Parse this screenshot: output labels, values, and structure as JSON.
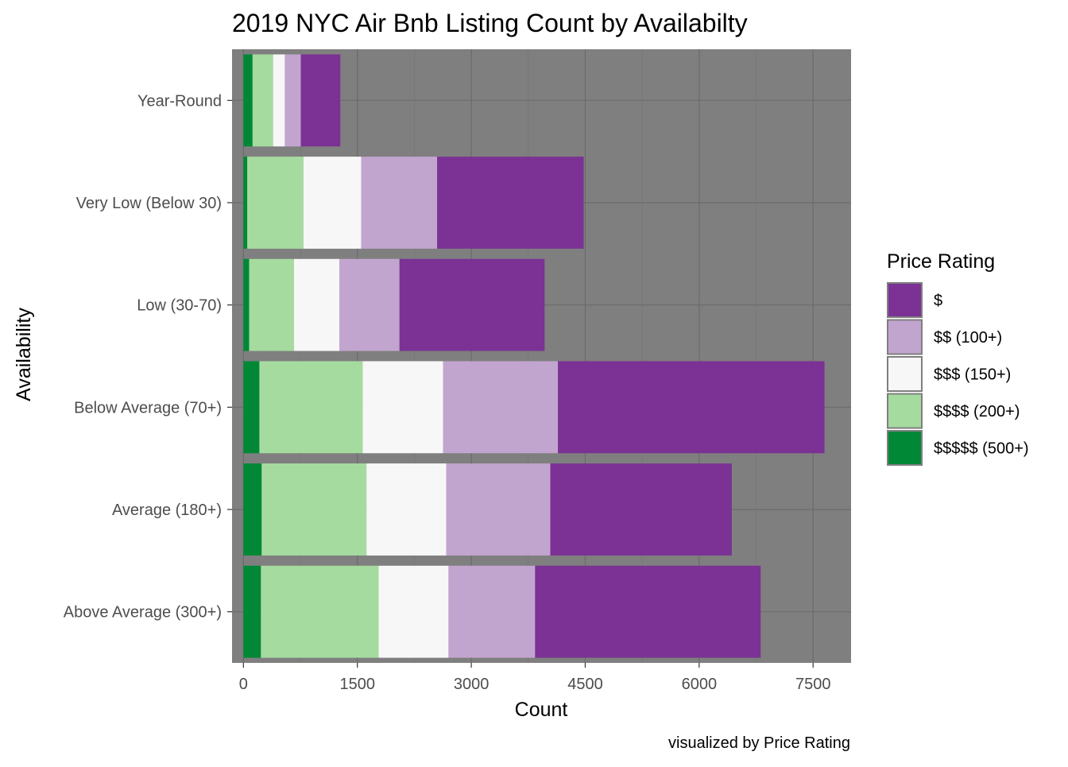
{
  "chart_data": {
    "type": "bar",
    "orientation": "horizontal",
    "stacked": true,
    "title": "2019 NYC Air Bnb Listing Count by Availabilty",
    "xlabel": "Count",
    "ylabel": "Availability",
    "caption": "visualized by Price Rating",
    "xlim": [
      -150,
      8000
    ],
    "xticks": [
      0,
      1500,
      3000,
      4500,
      6000,
      7500
    ],
    "grid": true,
    "panel_background": "#7f7f7f",
    "categories": [
      "Year-Round",
      "Very Low (Below 30)",
      "Low (30-70)",
      "Below Average (70+)",
      "Average (180+)",
      "Above Average (300+)"
    ],
    "legend": {
      "title": "Price Rating",
      "position": "right"
    },
    "series": [
      {
        "name": "$$$$$ (500+)",
        "color": "#008837",
        "values": [
          120,
          50,
          75,
          210,
          240,
          230
        ]
      },
      {
        "name": "$$$$ (200+)",
        "color": "#a6dba0",
        "values": [
          270,
          740,
          590,
          1360,
          1380,
          1550
        ]
      },
      {
        "name": "$$$ (150+)",
        "color": "#f7f7f7",
        "values": [
          155,
          760,
          600,
          1060,
          1050,
          920
        ]
      },
      {
        "name": "$$ (100+)",
        "color": "#c2a5cf",
        "values": [
          210,
          1000,
          790,
          1510,
          1370,
          1140
        ]
      },
      {
        "name": "$",
        "color": "#7b3294",
        "values": [
          520,
          1930,
          1910,
          3510,
          2390,
          2970
        ]
      }
    ]
  }
}
